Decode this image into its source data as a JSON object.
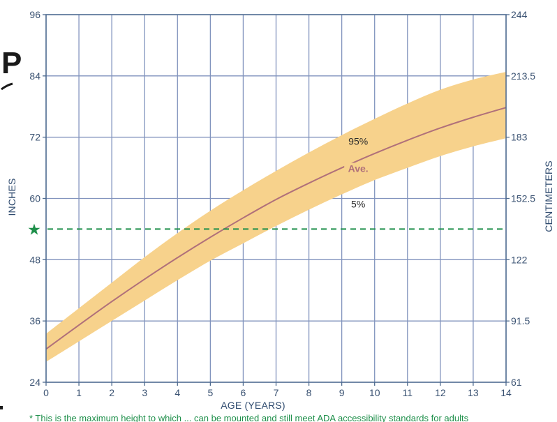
{
  "chart_data": {
    "type": "area",
    "xlabel": "AGE (YEARS)",
    "ylabel_left": "INCHES",
    "ylabel_right": "CENTIMETERS",
    "xlim": [
      0,
      14
    ],
    "ylim": [
      24,
      96
    ],
    "x_ticks": [
      0,
      1,
      2,
      3,
      4,
      5,
      6,
      7,
      8,
      9,
      10,
      11,
      12,
      13,
      14
    ],
    "y_ticks_left": [
      24,
      36,
      48,
      60,
      72,
      84,
      96
    ],
    "y_ticks_right": [
      "61",
      "91.5",
      "122",
      "152.5",
      "183",
      "213.5",
      "244"
    ],
    "grid": true,
    "x": [
      0,
      1,
      2,
      3,
      4,
      5,
      6,
      7,
      8,
      9,
      10,
      11,
      12,
      13,
      14
    ],
    "series": [
      {
        "name": "95%",
        "values": [
          33.5,
          38.5,
          43.5,
          48.5,
          53.2,
          57.6,
          61.6,
          65.4,
          69.0,
          72.4,
          75.6,
          78.6,
          81.3,
          83.3,
          84.8
        ]
      },
      {
        "name": "Ave.",
        "values": [
          30.5,
          35.2,
          39.8,
          44.2,
          48.4,
          52.4,
          56.2,
          59.8,
          63.0,
          66.0,
          68.8,
          71.4,
          73.8,
          75.9,
          77.8
        ]
      },
      {
        "name": "5%",
        "values": [
          28.0,
          32.0,
          36.0,
          40.0,
          44.0,
          47.8,
          51.2,
          54.6,
          57.8,
          60.8,
          63.6,
          66.0,
          68.3,
          70.2,
          71.8
        ]
      }
    ],
    "reference_line": {
      "value": 54,
      "style": "dashed",
      "marker": "★"
    },
    "colors": {
      "band": "#f7d28c",
      "average_line": "#b0707a",
      "grid": "#8193bd",
      "frame": "#4d6a8f",
      "reference": "#1e8f4a",
      "tick_text": "#3a5272"
    }
  },
  "fragments": {
    "left_letter": "P",
    "footnote": "* This is the maximum height to which ... can be mounted and still meet ADA accessibility standards for adults"
  }
}
